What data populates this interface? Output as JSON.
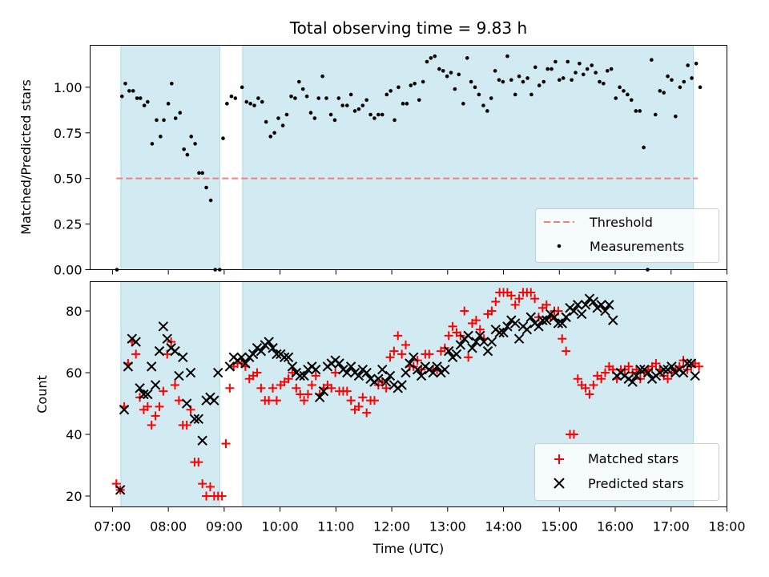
{
  "chart_data": [
    {
      "type": "scatter",
      "title": "Total observing time = 9.83 h",
      "xlabel": "",
      "ylabel": "Matched/Predicted stars",
      "xlim": [
        6.6,
        18.0
      ],
      "ylim": [
        0.0,
        1.23
      ],
      "yticks": [
        0.0,
        0.25,
        0.5,
        0.75,
        1.0
      ],
      "ytick_labels": [
        "0.00",
        "0.25",
        "0.50",
        "0.75",
        "1.00"
      ],
      "legend_position": "lower-right",
      "observing_windows": [
        [
          7.15,
          8.92
        ],
        [
          9.33,
          17.4
        ]
      ],
      "observing_window_color": "#add8e6",
      "threshold": {
        "name": "Threshold",
        "value": 0.5,
        "x_range": [
          7.07,
          17.48
        ],
        "color": "#f08080",
        "style": "dashed"
      },
      "series": [
        {
          "name": "Measurements",
          "marker": "dot",
          "color": "#000000",
          "x": [
            7.08,
            7.17,
            7.23,
            7.3,
            7.37,
            7.44,
            7.5,
            7.57,
            7.63,
            7.71,
            7.79,
            7.86,
            7.92,
            8.0,
            8.06,
            8.13,
            8.21,
            8.28,
            8.34,
            8.41,
            8.48,
            8.55,
            8.61,
            8.68,
            8.76,
            8.84,
            8.92,
            8.98,
            9.05,
            9.13,
            9.2,
            9.32,
            9.4,
            9.47,
            9.54,
            9.61,
            9.68,
            9.75,
            9.83,
            9.9,
            9.97,
            10.05,
            10.12,
            10.2,
            10.27,
            10.34,
            10.41,
            10.48,
            10.55,
            10.62,
            10.69,
            10.76,
            10.83,
            10.91,
            10.98,
            11.05,
            11.12,
            11.2,
            11.27,
            11.34,
            11.41,
            11.48,
            11.55,
            11.62,
            11.69,
            11.76,
            11.83,
            11.91,
            11.98,
            12.05,
            12.12,
            12.2,
            12.27,
            12.34,
            12.41,
            12.49,
            12.56,
            12.63,
            12.7,
            12.77,
            12.85,
            12.92,
            12.99,
            13.06,
            13.13,
            13.2,
            13.28,
            13.35,
            13.42,
            13.49,
            13.56,
            13.64,
            13.71,
            13.78,
            13.85,
            13.92,
            13.99,
            14.07,
            14.14,
            14.21,
            14.28,
            14.35,
            14.43,
            14.5,
            14.57,
            14.64,
            14.72,
            14.79,
            14.86,
            14.93,
            15.0,
            15.07,
            15.15,
            15.22,
            15.29,
            15.36,
            15.43,
            15.5,
            15.58,
            15.65,
            15.72,
            15.79,
            15.86,
            15.93,
            16.01,
            16.08,
            16.15,
            16.22,
            16.29,
            16.37,
            16.44,
            16.51,
            16.58,
            16.65,
            16.72,
            16.8,
            16.87,
            16.94,
            17.01,
            17.08,
            17.16,
            17.23,
            17.3,
            17.37,
            17.45,
            17.52
          ],
          "y": [
            0.0,
            0.95,
            1.02,
            0.98,
            0.98,
            0.94,
            0.94,
            0.9,
            0.92,
            0.69,
            0.82,
            0.73,
            0.82,
            0.91,
            1.02,
            0.83,
            0.86,
            0.66,
            0.63,
            0.73,
            0.69,
            0.53,
            0.53,
            0.45,
            0.38,
            0.0,
            0.0,
            0.72,
            0.91,
            0.95,
            0.94,
            1.0,
            0.92,
            0.91,
            0.9,
            0.94,
            0.92,
            0.81,
            0.73,
            0.75,
            0.83,
            0.79,
            0.85,
            0.95,
            0.94,
            1.03,
            0.99,
            0.95,
            0.86,
            0.83,
            0.94,
            1.06,
            0.94,
            0.85,
            0.82,
            0.94,
            0.9,
            0.9,
            0.96,
            0.87,
            0.88,
            0.9,
            0.93,
            0.85,
            0.83,
            0.85,
            0.85,
            0.96,
            0.98,
            0.82,
            1.0,
            0.91,
            0.91,
            1.01,
            1.02,
            0.93,
            1.03,
            1.14,
            1.16,
            1.17,
            1.1,
            1.09,
            1.06,
            1.08,
            0.99,
            1.07,
            0.91,
            1.16,
            1.03,
            1.0,
            0.96,
            0.9,
            0.87,
            0.94,
            1.09,
            1.04,
            1.03,
            1.17,
            1.04,
            0.96,
            1.06,
            1.03,
            1.05,
            0.96,
            1.11,
            1.01,
            1.03,
            1.1,
            1.1,
            1.14,
            1.04,
            1.05,
            1.14,
            1.04,
            1.08,
            1.13,
            1.07,
            1.1,
            1.12,
            1.08,
            1.03,
            1.02,
            1.09,
            1.1,
            0.94,
            1.0,
            0.98,
            0.96,
            0.93,
            0.87,
            0.87,
            0.67,
            0.0,
            1.15,
            0.85,
            0.98,
            0.97,
            1.06,
            1.04,
            0.84,
            1.0,
            1.03,
            1.12,
            1.05,
            1.13,
            1.0
          ],
          "n_shown": 131
        }
      ]
    },
    {
      "type": "scatter",
      "title": "",
      "xlabel": "Time (UTC)",
      "ylabel": "Count",
      "xlim": [
        6.6,
        18.0
      ],
      "ylim": [
        16.5,
        89.5
      ],
      "xticks": [
        7,
        8,
        9,
        10,
        11,
        12,
        13,
        14,
        15,
        16,
        17,
        18
      ],
      "xtick_labels": [
        "07:00",
        "08:00",
        "09:00",
        "10:00",
        "11:00",
        "12:00",
        "13:00",
        "14:00",
        "15:00",
        "16:00",
        "17:00",
        "18:00"
      ],
      "yticks": [
        20,
        40,
        60,
        80
      ],
      "ytick_labels": [
        "20",
        "40",
        "60",
        "80"
      ],
      "legend_position": "lower-right",
      "series": [
        {
          "name": "Matched stars",
          "marker": "plus",
          "color": "#ff0000",
          "x": [
            7.07,
            7.14,
            7.21,
            7.28,
            7.35,
            7.42,
            7.49,
            7.56,
            7.63,
            7.7,
            7.77,
            7.84,
            7.91,
            7.98,
            8.05,
            8.12,
            8.19,
            8.26,
            8.33,
            8.4,
            8.47,
            8.54,
            8.61,
            8.68,
            8.75,
            8.82,
            8.89,
            8.96,
            9.03,
            9.1,
            9.17,
            9.24,
            9.31,
            9.38,
            9.45,
            9.52,
            9.59,
            9.66,
            9.73,
            9.8,
            9.87,
            9.94,
            10.01,
            10.08,
            10.15,
            10.22,
            10.29,
            10.36,
            10.43,
            10.5,
            10.57,
            10.64,
            10.71,
            10.78,
            10.85,
            10.92,
            10.99,
            11.06,
            11.13,
            11.2,
            11.27,
            11.34,
            11.41,
            11.48,
            11.55,
            11.62,
            11.69,
            11.76,
            11.83,
            11.9,
            11.97,
            12.04,
            12.11,
            12.18,
            12.25,
            12.32,
            12.39,
            12.46,
            12.53,
            12.6,
            12.67,
            12.74,
            12.81,
            12.88,
            12.95,
            13.02,
            13.09,
            13.16,
            13.23,
            13.3,
            13.37,
            13.44,
            13.51,
            13.58,
            13.65,
            13.72,
            13.79,
            13.86,
            13.93,
            14.0,
            14.07,
            14.14,
            14.21,
            14.28,
            14.35,
            14.42,
            14.49,
            14.56,
            14.63,
            14.7,
            14.77,
            14.84,
            14.91,
            14.98,
            15.05,
            15.12,
            15.19,
            15.26,
            15.33,
            15.4,
            15.47,
            15.54,
            15.61,
            15.68,
            15.75,
            15.82,
            15.89,
            15.96,
            16.03,
            16.1,
            16.17,
            16.24,
            16.31,
            16.38,
            16.45,
            16.52,
            16.59,
            16.66,
            16.73,
            16.8,
            16.87,
            16.94,
            17.01,
            17.08,
            17.15,
            17.22,
            17.29,
            17.36,
            17.43,
            17.5
          ],
          "y": [
            24,
            22,
            49,
            63,
            70,
            66,
            52,
            48,
            49,
            43,
            46,
            49,
            54,
            66,
            70,
            56,
            51,
            43,
            43,
            48,
            31,
            31,
            24,
            20,
            23,
            20,
            20,
            20,
            37,
            55,
            62,
            63,
            63,
            62,
            58,
            59,
            60,
            55,
            51,
            51,
            55,
            51,
            56,
            57,
            58,
            60,
            55,
            53,
            51,
            53,
            56,
            59,
            53,
            55,
            56,
            55,
            60,
            54,
            54,
            54,
            51,
            48,
            49,
            52,
            47,
            51,
            51,
            56,
            57,
            55,
            65,
            67,
            72,
            66,
            69,
            62,
            62,
            64,
            61,
            66,
            66,
            61,
            61,
            67,
            68,
            72,
            75,
            73,
            72,
            80,
            65,
            76,
            77,
            74,
            71,
            79,
            80,
            83,
            86,
            86,
            86,
            85,
            82,
            84,
            86,
            86,
            86,
            84,
            78,
            81,
            82,
            78,
            80,
            80,
            71,
            67,
            40,
            40,
            58,
            56,
            55,
            53,
            56,
            59,
            58,
            60,
            62,
            61,
            58,
            61,
            61,
            62,
            60,
            61,
            58,
            60,
            61,
            62,
            63,
            61,
            59,
            58,
            60,
            61,
            62,
            64,
            61,
            62,
            63,
            62
          ],
          "n_shown": 127
        },
        {
          "name": "Predicted stars",
          "marker": "x",
          "color": "#000000",
          "x": [
            7.14,
            7.21,
            7.28,
            7.35,
            7.42,
            7.49,
            7.56,
            7.63,
            7.7,
            7.77,
            7.84,
            7.91,
            7.98,
            8.05,
            8.12,
            8.19,
            8.26,
            8.33,
            8.4,
            8.47,
            8.54,
            8.61,
            8.68,
            8.75,
            8.82,
            8.89,
            9.1,
            9.17,
            9.24,
            9.31,
            9.38,
            9.45,
            9.52,
            9.59,
            9.66,
            9.73,
            9.8,
            9.87,
            9.94,
            10.01,
            10.08,
            10.15,
            10.22,
            10.29,
            10.36,
            10.43,
            10.5,
            10.57,
            10.64,
            10.71,
            10.78,
            10.85,
            10.92,
            10.99,
            11.06,
            11.13,
            11.2,
            11.27,
            11.34,
            11.41,
            11.48,
            11.55,
            11.62,
            11.69,
            11.76,
            11.83,
            11.9,
            11.97,
            12.04,
            12.11,
            12.18,
            12.25,
            12.32,
            12.39,
            12.46,
            12.53,
            12.6,
            12.67,
            12.74,
            12.81,
            12.88,
            12.95,
            13.02,
            13.09,
            13.16,
            13.23,
            13.3,
            13.37,
            13.44,
            13.51,
            13.58,
            13.65,
            13.72,
            13.79,
            13.86,
            13.93,
            14.0,
            14.07,
            14.14,
            14.21,
            14.28,
            14.35,
            14.42,
            14.49,
            14.56,
            14.63,
            14.7,
            14.77,
            14.84,
            14.91,
            14.98,
            15.05,
            15.12,
            15.19,
            15.26,
            15.33,
            15.4,
            15.47,
            15.54,
            15.61,
            15.68,
            15.75,
            15.82,
            15.89,
            15.96,
            16.03,
            16.1,
            16.17,
            16.24,
            16.31,
            16.38,
            16.45,
            16.52,
            16.59,
            16.66,
            16.73,
            16.8,
            16.87,
            16.94,
            17.01,
            17.08,
            17.15,
            17.22,
            17.29,
            17.36,
            17.43
          ],
          "y": [
            22,
            48,
            62,
            71,
            70,
            55,
            53,
            53,
            62,
            56,
            67,
            75,
            71,
            68,
            67,
            59,
            65,
            50,
            60,
            45,
            45,
            38,
            51,
            52,
            51,
            60,
            62,
            65,
            64,
            65,
            63,
            65,
            66,
            68,
            67,
            69,
            70,
            68,
            66,
            66,
            65,
            65,
            62,
            60,
            59,
            59,
            61,
            62,
            61,
            52,
            54,
            62,
            63,
            64,
            63,
            61,
            60,
            62,
            60,
            59,
            61,
            60,
            58,
            57,
            58,
            61,
            57,
            59,
            56,
            55,
            56,
            60,
            63,
            65,
            61,
            59,
            62,
            61,
            60,
            62,
            60,
            61,
            67,
            65,
            66,
            69,
            71,
            72,
            68,
            70,
            72,
            70,
            67,
            70,
            74,
            73,
            73,
            75,
            77,
            76,
            71,
            75,
            74,
            78,
            76,
            75,
            77,
            77,
            79,
            78,
            76,
            76,
            78,
            81,
            80,
            82,
            79,
            82,
            84,
            83,
            81,
            82,
            80,
            82,
            77,
            59,
            60,
            59,
            58,
            57,
            59,
            61,
            61,
            60,
            58,
            59,
            60,
            61,
            61,
            62,
            60,
            61,
            60,
            63,
            63,
            59
          ],
          "n_shown": 127
        }
      ]
    }
  ]
}
